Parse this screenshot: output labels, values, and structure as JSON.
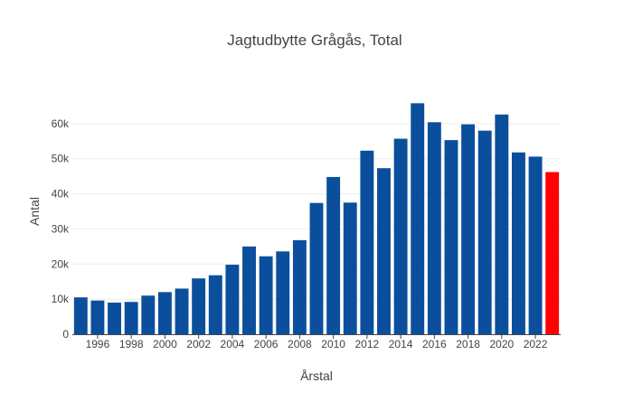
{
  "chart_data": {
    "type": "bar",
    "title": "Jagtudbytte Grågås, Total",
    "xlabel": "Årstal",
    "ylabel": "Antal",
    "categories": [
      1995,
      1996,
      1997,
      1998,
      1999,
      2000,
      2001,
      2002,
      2003,
      2004,
      2005,
      2006,
      2007,
      2008,
      2009,
      2010,
      2011,
      2012,
      2013,
      2014,
      2015,
      2016,
      2017,
      2018,
      2019,
      2020,
      2021,
      2022,
      2023
    ],
    "values": [
      10500,
      9600,
      9000,
      9200,
      11000,
      12000,
      13000,
      15900,
      16800,
      19800,
      25000,
      22200,
      23600,
      26800,
      37400,
      44800,
      37500,
      52300,
      47300,
      55700,
      65800,
      60400,
      55300,
      59800,
      58000,
      62600,
      51800,
      50600,
      46200
    ],
    "highlight_index": 28,
    "colors": {
      "bar": "#0b4f9c",
      "highlight": "#ff0000",
      "grid": "#eeeeee",
      "axis": "#444444"
    },
    "ylim": [
      0,
      70000
    ],
    "y_ticks": [
      0,
      10000,
      20000,
      30000,
      40000,
      50000,
      60000
    ],
    "y_tick_labels": [
      "0",
      "10k",
      "20k",
      "30k",
      "40k",
      "50k",
      "60k"
    ],
    "x_ticks": [
      1996,
      1998,
      2000,
      2002,
      2004,
      2006,
      2008,
      2010,
      2012,
      2014,
      2016,
      2018,
      2020,
      2022
    ],
    "x_tick_labels": [
      "1996",
      "1998",
      "2000",
      "2002",
      "2004",
      "2006",
      "2008",
      "2010",
      "2012",
      "2014",
      "2016",
      "2018",
      "2020",
      "2022"
    ],
    "grid": true,
    "legend": "none"
  }
}
